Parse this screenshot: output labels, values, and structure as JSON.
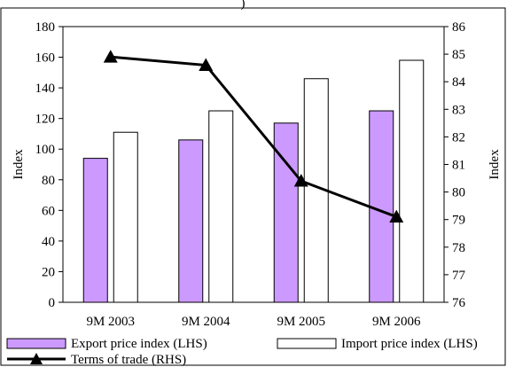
{
  "chart_data": {
    "type": "bar",
    "categories": [
      "9M 2003",
      "9M 2004",
      "9M 2005",
      "9M 2006"
    ],
    "series": [
      {
        "name": "Export price index (LHS)",
        "kind": "bar",
        "axis": "left",
        "color": "#cc99ff",
        "values": [
          94,
          106,
          117,
          125
        ]
      },
      {
        "name": "Import price index (LHS)",
        "kind": "bar",
        "axis": "left",
        "color": "#ffffff",
        "values": [
          111,
          125,
          146,
          158
        ]
      },
      {
        "name": "Terms of trade (RHS)",
        "kind": "line",
        "axis": "right",
        "color": "#000000",
        "marker": "triangle",
        "values": [
          84.9,
          84.6,
          80.4,
          79.1
        ]
      }
    ],
    "ylabel": "Index",
    "y2label": "Index",
    "ylim": [
      0,
      180
    ],
    "y2lim": [
      76,
      86
    ],
    "yticks": [
      "0",
      "20",
      "40",
      "60",
      "80",
      "100",
      "120",
      "140",
      "160",
      "180"
    ],
    "y2ticks": [
      "76",
      "77",
      "78",
      "79",
      "80",
      "81",
      "82",
      "83",
      "84",
      "85",
      "86"
    ],
    "grid": false,
    "legend_position": "bottom",
    "partial_header_glyph": ")"
  }
}
